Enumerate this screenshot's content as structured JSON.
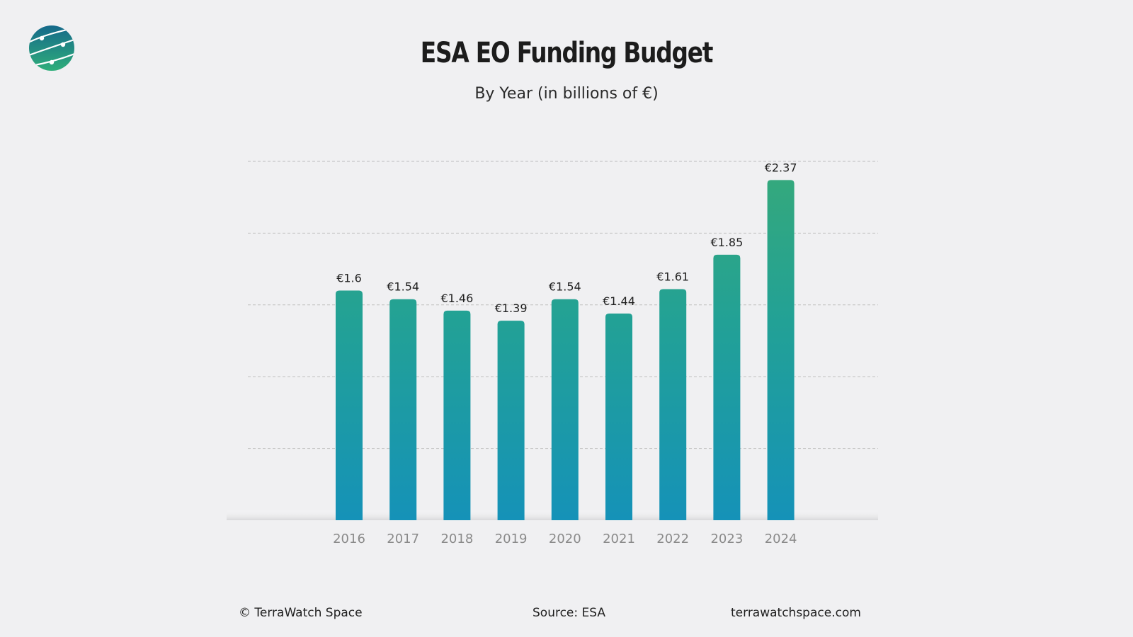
{
  "brand": {
    "logo_icon": "globe-orbit-icon",
    "colors": {
      "logo_top": "#15698a",
      "logo_bottom": "#2fae7a",
      "bar_top": "#36a97a",
      "bar_mid": "#22a196",
      "bar_bottom": "#1592b8",
      "gridline": "#bdbdbd",
      "background": "#f0f0f2"
    }
  },
  "chart_data": {
    "type": "bar",
    "title": "ESA EO Funding Budget",
    "subtitle": "By Year (in billions of €)",
    "categories": [
      "2016",
      "2017",
      "2018",
      "2019",
      "2020",
      "2021",
      "2022",
      "2023",
      "2024"
    ],
    "values": [
      1.6,
      1.54,
      1.46,
      1.39,
      1.54,
      1.44,
      1.61,
      1.85,
      2.37
    ],
    "data_labels": [
      "€1.6",
      "€1.54",
      "€1.46",
      "€1.39",
      "€1.54",
      "€1.44",
      "€1.61",
      "€1.85",
      "€2.37"
    ],
    "xlabel": "",
    "ylabel": "",
    "ylim": [
      0,
      2.5
    ],
    "y_gridlines": [
      0.5,
      1.0,
      1.5,
      2.0,
      2.5
    ],
    "grid": true,
    "legend": "none"
  },
  "footer": {
    "copyright": "© TerraWatch Space",
    "source": "Source: ESA",
    "website": "terrawatchspace.com"
  }
}
